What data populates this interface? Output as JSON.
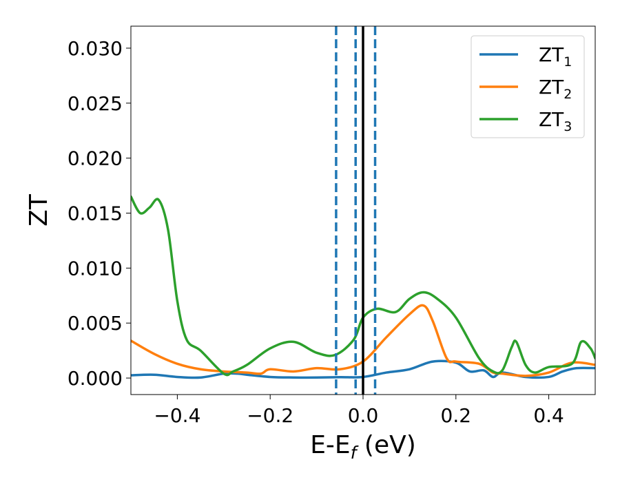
{
  "chart_data": {
    "type": "line",
    "xlabel": {
      "main": "E-E",
      "sub": "f",
      "unit": " (eV)"
    },
    "ylabel": "ZT",
    "xlim": [
      -0.5,
      0.5
    ],
    "ylim": [
      -0.0015,
      0.032
    ],
    "xticks": [
      -0.4,
      -0.2,
      0.0,
      0.2,
      0.4
    ],
    "xtick_labels": [
      "−0.4",
      "−0.2",
      "0.0",
      "0.2",
      "0.4"
    ],
    "yticks": [
      0.0,
      0.005,
      0.01,
      0.015,
      0.02,
      0.025,
      0.03
    ],
    "ytick_labels": [
      "0.000",
      "0.005",
      "0.010",
      "0.015",
      "0.020",
      "0.025",
      "0.030"
    ],
    "grid": false,
    "legend_position": "top-right",
    "vertical_lines": [
      {
        "x": -0.058,
        "style": "dashed",
        "color": "#1f77b4"
      },
      {
        "x": -0.016,
        "style": "dashed",
        "color": "#1f77b4"
      },
      {
        "x": 0.026,
        "style": "dashed",
        "color": "#1f77b4"
      },
      {
        "x": 0.0,
        "style": "solid",
        "color": "#000000"
      }
    ],
    "series": [
      {
        "name": "ZT",
        "name_sub": "1",
        "color": "#1f77b4",
        "x": [
          -0.5,
          -0.45,
          -0.4,
          -0.35,
          -0.3,
          -0.27,
          -0.25,
          -0.2,
          -0.15,
          -0.1,
          -0.05,
          0.0,
          0.05,
          0.1,
          0.15,
          0.2,
          0.23,
          0.26,
          0.28,
          0.3,
          0.35,
          0.4,
          0.43,
          0.46,
          0.5
        ],
        "y": [
          0.00025,
          0.0003,
          0.0001,
          5e-05,
          0.0004,
          0.0004,
          0.0003,
          0.0001,
          5e-05,
          5e-05,
          8e-05,
          0.0001,
          0.0005,
          0.0008,
          0.0015,
          0.0014,
          0.0006,
          0.0007,
          0.0001,
          0.0005,
          0.0001,
          0.0001,
          0.0006,
          0.0009,
          0.0009
        ]
      },
      {
        "name": "ZT",
        "name_sub": "2",
        "color": "#ff7f0e",
        "x": [
          -0.5,
          -0.45,
          -0.4,
          -0.35,
          -0.3,
          -0.25,
          -0.22,
          -0.2,
          -0.15,
          -0.1,
          -0.05,
          0.0,
          0.05,
          0.1,
          0.13,
          0.15,
          0.18,
          0.2,
          0.25,
          0.28,
          0.3,
          0.35,
          0.4,
          0.45,
          0.5
        ],
        "y": [
          0.0034,
          0.0022,
          0.0013,
          0.0008,
          0.0006,
          0.0005,
          0.0004,
          0.0008,
          0.0006,
          0.0009,
          0.0008,
          0.0015,
          0.0037,
          0.0058,
          0.0066,
          0.0052,
          0.0018,
          0.0015,
          0.0013,
          0.0005,
          0.0004,
          0.0002,
          0.0005,
          0.0014,
          0.0012
        ]
      },
      {
        "name": "ZT",
        "name_sub": "3",
        "color": "#2ca02c",
        "x": [
          -0.5,
          -0.48,
          -0.46,
          -0.44,
          -0.42,
          -0.4,
          -0.38,
          -0.35,
          -0.3,
          -0.28,
          -0.25,
          -0.2,
          -0.15,
          -0.1,
          -0.06,
          -0.02,
          0.0,
          0.03,
          0.07,
          0.1,
          0.13,
          0.16,
          0.2,
          0.25,
          0.28,
          0.3,
          0.32,
          0.33,
          0.35,
          0.37,
          0.4,
          0.45,
          0.47,
          0.49,
          0.5
        ],
        "y": [
          0.0165,
          0.015,
          0.0155,
          0.0162,
          0.0135,
          0.007,
          0.0035,
          0.0025,
          0.0004,
          0.0006,
          0.0012,
          0.0027,
          0.0033,
          0.0023,
          0.0021,
          0.0035,
          0.0055,
          0.0063,
          0.006,
          0.0072,
          0.0078,
          0.0072,
          0.0055,
          0.0018,
          0.0006,
          0.0007,
          0.0028,
          0.0033,
          0.0012,
          0.0005,
          0.001,
          0.0013,
          0.0033,
          0.0027,
          0.0018
        ]
      }
    ]
  }
}
